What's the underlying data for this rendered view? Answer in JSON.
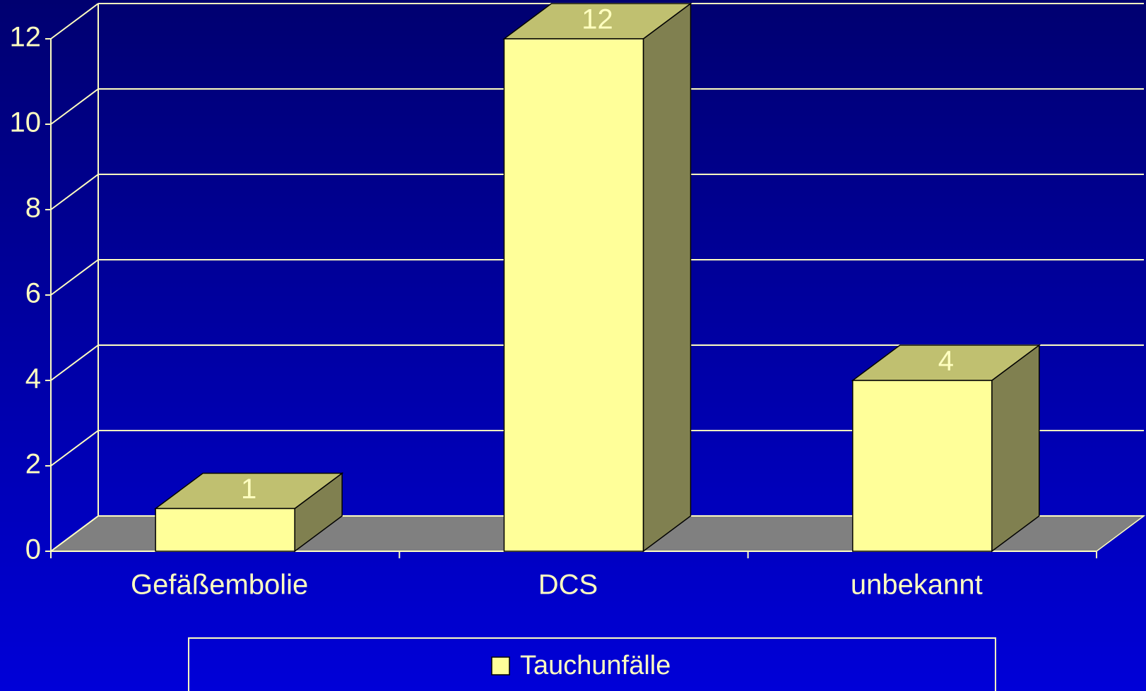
{
  "chart_data": {
    "type": "bar3d",
    "categories": [
      "Gefäßembolie",
      "DCS",
      "unbekannt"
    ],
    "series": [
      {
        "name": "Tauchunfälle",
        "color": "#ffff99",
        "values": [
          1,
          12,
          4
        ]
      }
    ],
    "ylim": [
      0,
      12
    ],
    "yticks": [
      0,
      2,
      4,
      6,
      8,
      10,
      12
    ],
    "grid": true,
    "legend": "bottom"
  }
}
